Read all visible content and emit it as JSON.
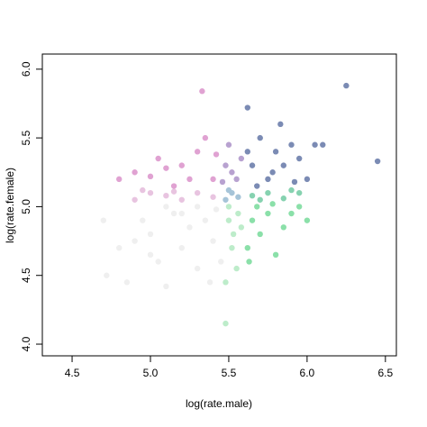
{
  "chart_data": {
    "type": "scatter",
    "xlabel": "log(rate.male)",
    "ylabel": "log(rate.female)",
    "xlim": [
      4.31,
      6.57
    ],
    "ylim": [
      3.915,
      6.11
    ],
    "xticks": [
      4.5,
      {
        "value": 5,
        "label": "5.0"
      },
      5.5,
      {
        "value": 6,
        "label": "6.0"
      },
      6.5
    ],
    "yticks": [
      {
        "value": 4,
        "label": "4.0"
      },
      4.5,
      {
        "value": 5,
        "label": "5.0"
      },
      5.5,
      {
        "value": 6,
        "label": "6.0"
      }
    ],
    "series": [
      {
        "color": "#efefef",
        "x": [
          4.7,
          4.72,
          4.85,
          4.9,
          5.0,
          5.05,
          5.1,
          5.15,
          5.2,
          5.25,
          5.3,
          5.35,
          5.4,
          5.42,
          5.3,
          5.2,
          5.1,
          4.95,
          5.45,
          5.0,
          4.8,
          5.38
        ],
        "values": [
          4.9,
          4.5,
          4.45,
          4.75,
          4.8,
          4.6,
          4.42,
          4.95,
          4.7,
          4.85,
          4.55,
          4.9,
          4.75,
          4.98,
          5.0,
          4.95,
          5.0,
          4.9,
          4.6,
          4.65,
          4.7,
          4.45
        ]
      },
      {
        "color": "#bdecca",
        "x": [
          5.48,
          5.48,
          5.5,
          5.52,
          5.55,
          5.58,
          5.5,
          5.56,
          5.53
        ],
        "values": [
          4.45,
          4.15,
          4.9,
          4.7,
          4.55,
          4.85,
          5.0,
          4.95,
          4.8
        ]
      },
      {
        "color": "#8be0a9",
        "x": [
          5.62,
          5.65,
          5.7,
          5.75,
          5.8,
          5.85,
          5.9,
          6.0,
          5.68,
          5.78,
          5.95,
          5.63
        ],
        "values": [
          4.7,
          4.9,
          4.8,
          4.95,
          4.65,
          4.85,
          4.95,
          4.9,
          5.0,
          5.02,
          5.0,
          4.6
        ]
      },
      {
        "color": "#e8c4e0",
        "x": [
          4.9,
          5.0,
          5.1,
          5.2,
          5.3,
          5.4,
          4.95,
          5.15
        ],
        "values": [
          5.05,
          5.1,
          5.08,
          5.05,
          5.1,
          5.07,
          5.12,
          5.11
        ]
      },
      {
        "color": "#a6c4d8",
        "x": [
          5.48,
          5.52,
          5.56,
          5.5
        ],
        "values": [
          5.05,
          5.1,
          5.07,
          5.12
        ]
      },
      {
        "color": "#86d2b0",
        "x": [
          5.65,
          5.75,
          5.85,
          5.95,
          5.7,
          5.9
        ],
        "values": [
          5.08,
          5.1,
          5.06,
          5.1,
          5.05,
          5.12
        ]
      },
      {
        "color": "#e0a2d2",
        "x": [
          4.8,
          4.9,
          5.0,
          5.05,
          5.1,
          5.2,
          5.3,
          5.33,
          5.35,
          5.4,
          5.25,
          5.15,
          5.42
        ],
        "values": [
          5.2,
          5.25,
          5.22,
          5.35,
          5.28,
          5.3,
          5.4,
          5.84,
          5.5,
          5.2,
          5.2,
          5.15,
          5.38
        ]
      },
      {
        "color": "#b8a2d0",
        "x": [
          5.48,
          5.5,
          5.55,
          5.58,
          5.52,
          5.46
        ],
        "values": [
          5.3,
          5.45,
          5.2,
          5.35,
          5.25,
          5.18
        ]
      },
      {
        "color": "#7b8bb4",
        "x": [
          5.62,
          5.65,
          5.7,
          5.75,
          5.8,
          5.83,
          5.85,
          5.9,
          5.95,
          6.0,
          6.05,
          6.1,
          6.25,
          6.45,
          5.68,
          5.78,
          5.92,
          5.62
        ],
        "values": [
          5.72,
          5.3,
          5.5,
          5.2,
          5.4,
          5.6,
          5.3,
          5.45,
          5.35,
          5.2,
          5.45,
          5.45,
          5.88,
          5.33,
          5.15,
          5.25,
          5.18,
          5.4
        ]
      }
    ]
  }
}
